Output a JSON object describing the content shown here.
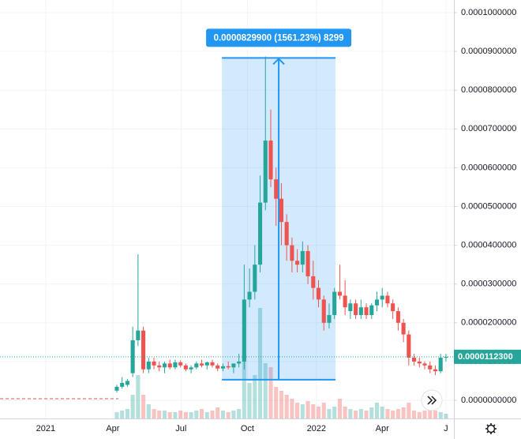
{
  "chart_data": {
    "type": "candlestick",
    "up_color": "#26a69a",
    "down_color": "#ef5350",
    "candles": [
      [
        2.5e-06,
        4e-06,
        2e-06,
        3.5e-06
      ],
      [
        3.5e-06,
        6e-06,
        3e-06,
        4.5e-06
      ],
      [
        4e-06,
        5.5e-06,
        3.5e-06,
        5e-06
      ],
      [
        7e-06,
        1.9e-05,
        6e-06,
        1.55e-05
      ],
      [
        1.55e-05,
        3.77e-05,
        1.4e-05,
        1.8e-05
      ],
      [
        1.8e-05,
        1.9e-05,
        7e-06,
        8e-06
      ],
      [
        8e-06,
        1.1e-05,
        7e-06,
        1e-05
      ],
      [
        1e-05,
        1.1e-05,
        8e-06,
        9e-06
      ],
      [
        9e-06,
        1e-05,
        7.5e-06,
        8.5e-06
      ],
      [
        8.5e-06,
        1e-05,
        7e-06,
        9.5e-06
      ],
      [
        9.5e-06,
        1.05e-05,
        8e-06,
        8.5e-06
      ],
      [
        8.5e-06,
        1.05e-05,
        8e-06,
        9.8e-06
      ],
      [
        9.8e-06,
        1.03e-05,
        8.5e-06,
        9e-06
      ],
      [
        9e-06,
        9.5e-06,
        7.5e-06,
        8e-06
      ],
      [
        8e-06,
        9e-06,
        7e-06,
        8.5e-06
      ],
      [
        8.5e-06,
        1e-05,
        8e-06,
        9.5e-06
      ],
      [
        9.5e-06,
        1.05e-05,
        8.5e-06,
        9e-06
      ],
      [
        9e-06,
        1e-05,
        8e-06,
        9.8e-06
      ],
      [
        9.8e-06,
        1.05e-05,
        8.5e-06,
        9e-06
      ],
      [
        9e-06,
        9.5e-06,
        7.5e-06,
        8.2e-06
      ],
      [
        8.2e-06,
        9.5e-06,
        7.5e-06,
        8.8e-06
      ],
      [
        8.8e-06,
        1e-05,
        8e-06,
        8.5e-06
      ],
      [
        8.5e-06,
        9.5e-06,
        7e-06,
        9.5e-06
      ],
      [
        9.5e-06,
        1.2e-05,
        8.5e-06,
        1e-05
      ],
      [
        1e-05,
        3.5e-05,
        8e-06,
        2.6e-05
      ],
      [
        2.6e-05,
        3.4e-05,
        2.4e-05,
        2.8e-05
      ],
      [
        2.8e-05,
        4e-05,
        2.6e-05,
        3.5e-05
      ],
      [
        3.5e-05,
        5.8e-05,
        3.3e-05,
        5.1e-05
      ],
      [
        5.1e-05,
        8.87e-05,
        4.9e-05,
        6.7e-05
      ],
      [
        6.7e-05,
        7.5e-05,
        5.5e-05,
        5.7e-05
      ],
      [
        5.7e-05,
        6e-05,
        4.5e-05,
        5.2e-05
      ],
      [
        5.2e-05,
        5.6e-05,
        4e-05,
        4.6e-05
      ],
      [
        4.6e-05,
        4.8e-05,
        3.6e-05,
        4e-05
      ],
      [
        4e-05,
        4.2e-05,
        3.3e-05,
        3.6e-05
      ],
      [
        3.6e-05,
        3.9e-05,
        3.3e-05,
        3.5e-05
      ],
      [
        3.5e-05,
        4.1e-05,
        3.3e-05,
        3.85e-05
      ],
      [
        3.85e-05,
        4e-05,
        3e-05,
        3.2e-05
      ],
      [
        3.2e-05,
        3.6e-05,
        2.6e-05,
        2.9e-05
      ],
      [
        2.9e-05,
        3.1e-05,
        2.4e-05,
        2.6e-05
      ],
      [
        2.6e-05,
        2.7e-05,
        1.8e-05,
        2e-05
      ],
      [
        2e-05,
        2.5e-05,
        1.85e-05,
        2.2e-05
      ],
      [
        2.2e-05,
        2.9e-05,
        2.1e-05,
        2.8e-05
      ],
      [
        2.8e-05,
        3.5e-05,
        2.6e-05,
        2.7e-05
      ],
      [
        2.7e-05,
        3.1e-05,
        2.2e-05,
        2.4e-05
      ],
      [
        2.3e-05,
        2.6e-05,
        2.1e-05,
        2.5e-05
      ],
      [
        2.5e-05,
        2.6e-05,
        2.1e-05,
        2.2e-05
      ],
      [
        2.2e-05,
        2.6e-05,
        2.1e-05,
        2.4e-05
      ],
      [
        2.4e-05,
        2.5e-05,
        2.1e-05,
        2.2e-05
      ],
      [
        2.2e-05,
        2.5e-05,
        2.1e-05,
        2.45e-05
      ],
      [
        2.45e-05,
        2.8e-05,
        2.3e-05,
        2.6e-05
      ],
      [
        2.6e-05,
        2.9e-05,
        2.4e-05,
        2.7e-05
      ],
      [
        2.7e-05,
        2.8e-05,
        2.4e-05,
        2.5e-05
      ],
      [
        2.5e-05,
        2.6e-05,
        2.1e-05,
        2.3e-05
      ],
      [
        2.3e-05,
        2.4e-05,
        1.8e-05,
        2e-05
      ],
      [
        2e-05,
        2.1e-05,
        1.5e-05,
        1.7e-05
      ],
      [
        1.7e-05,
        1.8e-05,
        9e-06,
        1.1e-05
      ],
      [
        1.1e-05,
        1.2e-05,
        9e-06,
        1e-05
      ],
      [
        1e-05,
        1.1e-05,
        8.5e-06,
        9.5e-06
      ],
      [
        9.5e-06,
        1e-05,
        8e-06,
        9e-06
      ],
      [
        9e-06,
        1e-05,
        7e-06,
        8e-06
      ],
      [
        8e-06,
        9e-06,
        6.5e-06,
        7.5e-06
      ],
      [
        7.5e-06,
        1.2e-05,
        7e-06,
        1.1e-05
      ],
      [
        1.1e-05,
        1.2e-05,
        1e-05,
        1.123e-05
      ]
    ],
    "volume": [
      8,
      10,
      12,
      30,
      55,
      30,
      18,
      12,
      10,
      10,
      8,
      8,
      10,
      8,
      8,
      10,
      12,
      8,
      10,
      14,
      10,
      8,
      10,
      12,
      80,
      45,
      55,
      140,
      70,
      65,
      40,
      35,
      30,
      25,
      20,
      18,
      22,
      18,
      15,
      20,
      12,
      15,
      25,
      15,
      12,
      10,
      12,
      10,
      14,
      20,
      15,
      12,
      10,
      12,
      14,
      20,
      10,
      8,
      10,
      12,
      10,
      8,
      6
    ],
    "vlim": [
      0,
      530
    ],
    "xlim": [
      -22,
      63.5
    ],
    "xticks": [
      {
        "value": -13.4,
        "label": "2021"
      },
      {
        "value": -0.75,
        "label": "Apr"
      },
      {
        "value": 12.1,
        "label": "Jul"
      },
      {
        "value": 24.6,
        "label": "Oct"
      },
      {
        "value": 37.6,
        "label": "2022"
      },
      {
        "value": 50,
        "label": "Apr"
      },
      {
        "value": 62,
        "label": "J"
      }
    ],
    "ylim": [
      -4.68e-06,
      0.00010326
    ],
    "yticks": [
      {
        "value": 0,
        "label": "0.0000000000"
      },
      {
        "value": 1e-05,
        "label": "0.0000100000"
      },
      {
        "value": 2e-05,
        "label": "0.0000200000"
      },
      {
        "value": 3e-05,
        "label": "0.0000300000"
      },
      {
        "value": 4e-05,
        "label": "0.0000400000"
      },
      {
        "value": 5e-05,
        "label": "0.0000500000"
      },
      {
        "value": 6e-05,
        "label": "0.0000600000"
      },
      {
        "value": 7e-05,
        "label": "0.0000700000"
      },
      {
        "value": 8e-05,
        "label": "0.0000800000"
      },
      {
        "value": 9e-05,
        "label": "0.0000900000"
      },
      {
        "value": 0.0001,
        "label": "0.0001000000"
      }
    ],
    "grid": true,
    "last_price": {
      "value": 1.123e-05,
      "label": "0.0000112300"
    },
    "measure": {
      "label": "0.0000829900 (1561.23%) 8299",
      "from": 5.3156e-06,
      "to": 8.83056e-05,
      "start": 19.8,
      "end": 41.2
    }
  }
}
